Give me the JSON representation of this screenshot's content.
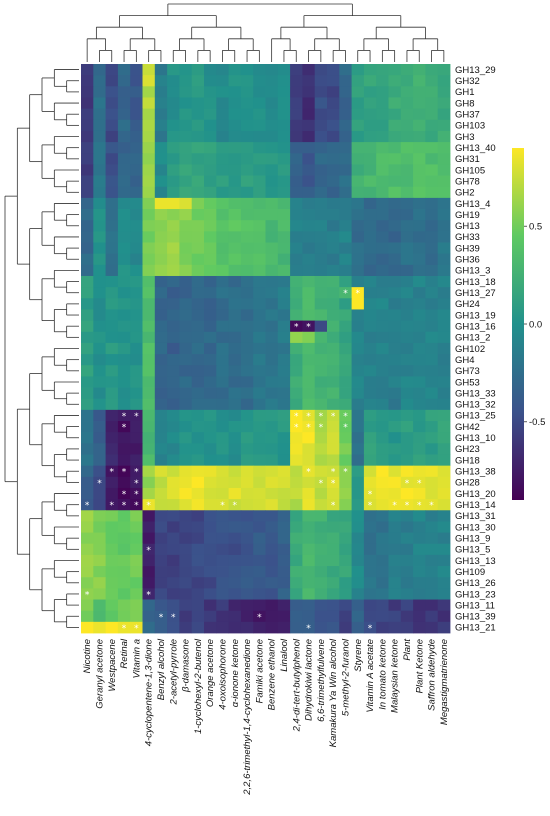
{
  "chart_data": {
    "type": "heatmap",
    "title": "",
    "xlabel": "",
    "ylabel": "",
    "rows": [
      "GH13_29",
      "GH32",
      "GH1",
      "GH8",
      "GH37",
      "GH103",
      "GH3",
      "GH13_40",
      "GH31",
      "GH105",
      "GH78",
      "GH2",
      "GH13_4",
      "GH19",
      "GH13",
      "GH33",
      "GH39",
      "GH36",
      "GH13_3",
      "GH13_18",
      "GH13_27",
      "GH24",
      "GH13_19",
      "GH13_16",
      "GH13_2",
      "GH102",
      "GH4",
      "GH73",
      "GH53",
      "GH13_33",
      "GH13_32",
      "GH13_25",
      "GH42",
      "GH13_10",
      "GH23",
      "GH18",
      "GH13_38",
      "GH28",
      "GH13_20",
      "GH13_14",
      "GH13_31",
      "GH13_30",
      "GH13_9",
      "GH13_5",
      "GH13_13",
      "GH109",
      "GH13_26",
      "GH13_23",
      "GH13_11",
      "GH13_39",
      "GH13_21"
    ],
    "columns": [
      "Nicotine",
      "Geranyl acetone",
      "Westpacene",
      "Retinal",
      "Vitamin a",
      "4-cyclopentene-1,3-dione",
      "Benzyl alcohol",
      "2-acetyl-pyrrole",
      "β-damasone",
      "1-cyclohexyl-2-butenol",
      "Orange acetone",
      "4-oxoisophorone",
      "α-ionone ketone",
      "2,2,6-trimethyl-1,4-cyclohexanedione",
      "Famiki acetone",
      "Benzene ethanol",
      "Linalool",
      "2,4-di-tert-butylphenol",
      "Dihydrokiwi lactone",
      "6,6-trimethylfulvene",
      "Kamakura Ya Win alcohol",
      "5-methyl-2-furanol",
      "Styrene",
      "Vitamin A acetate",
      "In tomato ketone",
      "Malaysian ketone",
      "Plant",
      "Plant Ketone",
      "Saffron aldehyde",
      "Megastigmatrienone"
    ],
    "row_group_values": [
      [
        -0.6,
        -0.25,
        -0.5,
        -0.3,
        -0.4,
        0.7,
        -0.15,
        0.0,
        0.05,
        0.05,
        0.0,
        -0.05,
        0.0,
        0.0,
        0.0,
        -0.05,
        -0.05,
        -0.55,
        -0.65,
        -0.45,
        -0.5,
        -0.3,
        0.1,
        0.15,
        0.15,
        0.2,
        0.2,
        0.25,
        0.2,
        0.2
      ],
      [
        -0.55,
        -0.2,
        -0.45,
        -0.3,
        -0.35,
        0.6,
        -0.05,
        0.1,
        0.15,
        0.15,
        0.1,
        0.1,
        0.1,
        0.1,
        0.1,
        0.05,
        0.05,
        -0.35,
        -0.4,
        -0.3,
        -0.3,
        -0.25,
        0.25,
        0.3,
        0.35,
        0.35,
        0.35,
        0.4,
        0.35,
        0.35
      ],
      [
        -0.3,
        0.0,
        -0.2,
        0.0,
        -0.05,
        0.5,
        0.55,
        0.6,
        0.55,
        0.5,
        0.45,
        0.4,
        0.4,
        0.4,
        0.35,
        0.3,
        0.3,
        -0.1,
        -0.15,
        -0.1,
        -0.15,
        -0.1,
        -0.25,
        -0.3,
        -0.3,
        -0.3,
        -0.25,
        -0.25,
        -0.25,
        -0.2
      ],
      [
        0.1,
        0.0,
        0.05,
        0.0,
        0.0,
        0.35,
        -0.3,
        -0.35,
        -0.3,
        -0.3,
        -0.3,
        -0.25,
        -0.25,
        -0.25,
        -0.2,
        -0.2,
        -0.15,
        0.2,
        0.3,
        0.25,
        0.25,
        0.15,
        -0.1,
        -0.1,
        -0.1,
        -0.15,
        -0.1,
        -0.1,
        -0.1,
        -0.1
      ],
      [
        -0.2,
        -0.35,
        -0.7,
        -0.8,
        -0.75,
        0.3,
        -0.1,
        -0.05,
        0.0,
        0.0,
        0.0,
        0.0,
        0.0,
        0.05,
        0.05,
        0.05,
        0.05,
        0.85,
        0.85,
        0.7,
        0.75,
        0.5,
        -0.2,
        0.1,
        0.05,
        0.05,
        0.1,
        0.1,
        0.1,
        0.15
      ],
      [
        -0.35,
        -0.5,
        -0.75,
        -0.85,
        -0.8,
        0.6,
        0.75,
        0.8,
        0.85,
        0.85,
        0.8,
        0.8,
        0.8,
        0.8,
        0.8,
        0.8,
        0.75,
        0.7,
        0.8,
        0.75,
        0.8,
        0.55,
        0.05,
        0.8,
        0.85,
        0.85,
        0.85,
        0.85,
        0.85,
        0.85
      ],
      [
        0.6,
        0.55,
        0.5,
        0.45,
        0.5,
        -0.75,
        -0.5,
        -0.55,
        -0.55,
        -0.5,
        -0.5,
        -0.45,
        -0.45,
        -0.4,
        -0.4,
        -0.4,
        -0.35,
        0.2,
        0.3,
        0.25,
        0.2,
        0.15,
        -0.05,
        -0.2,
        -0.2,
        -0.15,
        -0.15,
        -0.1,
        -0.1,
        -0.1
      ],
      [
        0.5,
        0.3,
        0.45,
        0.55,
        0.5,
        -0.3,
        -0.4,
        -0.5,
        -0.55,
        -0.55,
        -0.6,
        -0.6,
        -0.65,
        -0.7,
        -0.75,
        -0.75,
        -0.75,
        -0.35,
        -0.35,
        -0.4,
        -0.45,
        -0.55,
        -0.3,
        -0.5,
        -0.55,
        -0.55,
        -0.55,
        -0.6,
        -0.6,
        -0.6
      ]
    ],
    "row_group_assignment": [
      0,
      0,
      0,
      0,
      0,
      0,
      0,
      1,
      1,
      1,
      1,
      1,
      2,
      2,
      2,
      2,
      2,
      2,
      2,
      3,
      3,
      3,
      3,
      3,
      3,
      3,
      3,
      3,
      3,
      3,
      3,
      4,
      4,
      4,
      4,
      4,
      5,
      5,
      5,
      5,
      6,
      6,
      6,
      6,
      6,
      6,
      6,
      6,
      7,
      7,
      7
    ],
    "special_cells": [
      {
        "row": "GH13_27",
        "col": "Styrene",
        "value": 0.9
      },
      {
        "row": "GH13_27",
        "col": "5-methyl-2-furanol",
        "value": 0.3
      },
      {
        "row": "GH24",
        "col": "Styrene",
        "value": 0.9
      },
      {
        "row": "GH13_4",
        "col": "Benzyl alcohol",
        "value": 0.85
      },
      {
        "row": "GH13_4",
        "col": "2-acetyl-pyrrole",
        "value": 0.85
      },
      {
        "row": "GH13_4",
        "col": "β-damasone",
        "value": 0.8
      },
      {
        "row": "GH13_29",
        "col": "4-cyclopentene-1,3-dione",
        "value": 0.75
      },
      {
        "row": "GH32",
        "col": "4-cyclopentene-1,3-dione",
        "value": 0.8
      },
      {
        "row": "GH13_16",
        "col": "2,4-di-tert-butylphenol",
        "value": -0.85
      },
      {
        "row": "GH13_16",
        "col": "Dihydrokiwi lactone",
        "value": -0.8
      },
      {
        "row": "GH13_16",
        "col": "6,6-trimethylfulvene",
        "value": -0.5
      },
      {
        "row": "GH13_2",
        "col": "2,4-di-tert-butylphenol",
        "value": 0.6
      },
      {
        "row": "GH13_2",
        "col": "Dihydrokiwi lactone",
        "value": 0.55
      },
      {
        "row": "GH13_21",
        "col": "Nicotine",
        "value": 0.9
      },
      {
        "row": "GH13_21",
        "col": "Geranyl acetone",
        "value": 0.85
      },
      {
        "row": "GH13_21",
        "col": "Westpacene",
        "value": 0.9
      },
      {
        "row": "GH13_21",
        "col": "Retinal",
        "value": 0.85
      },
      {
        "row": "GH13_21",
        "col": "Vitamin a",
        "value": 0.85
      },
      {
        "row": "GH13_39",
        "col": "Nicotine",
        "value": 0.5
      },
      {
        "row": "GH13_14",
        "col": "4-cyclopentene-1,3-dione",
        "value": 0.85
      },
      {
        "row": "GH13_14",
        "col": "Nicotine",
        "value": -0.4
      }
    ],
    "stars": [
      [
        "GH13_27",
        "5-methyl-2-furanol"
      ],
      [
        "GH13_27",
        "Styrene"
      ],
      [
        "GH13_16",
        "2,4-di-tert-butylphenol"
      ],
      [
        "GH13_16",
        "Dihydrokiwi lactone"
      ],
      [
        "GH13_25",
        "Retinal"
      ],
      [
        "GH13_25",
        "Vitamin a"
      ],
      [
        "GH13_25",
        "2,4-di-tert-butylphenol"
      ],
      [
        "GH13_25",
        "Dihydrokiwi lactone"
      ],
      [
        "GH13_25",
        "6,6-trimethylfulvene"
      ],
      [
        "GH13_25",
        "Kamakura Ya Win alcohol"
      ],
      [
        "GH13_25",
        "5-methyl-2-furanol"
      ],
      [
        "GH42",
        "Retinal"
      ],
      [
        "GH42",
        "2,4-di-tert-butylphenol"
      ],
      [
        "GH42",
        "Dihydrokiwi lactone"
      ],
      [
        "GH42",
        "6,6-trimethylfulvene"
      ],
      [
        "GH42",
        "5-methyl-2-furanol"
      ],
      [
        "GH13_38",
        "Westpacene"
      ],
      [
        "GH13_38",
        "Retinal"
      ],
      [
        "GH13_38",
        "Vitamin a"
      ],
      [
        "GH13_38",
        "Dihydrokiwi lactone"
      ],
      [
        "GH13_38",
        "Kamakura Ya Win alcohol"
      ],
      [
        "GH13_38",
        "5-methyl-2-furanol"
      ],
      [
        "GH28",
        "Geranyl acetone"
      ],
      [
        "GH28",
        "Vitamin a"
      ],
      [
        "GH28",
        "6,6-trimethylfulvene"
      ],
      [
        "GH28",
        "Kamakura Ya Win alcohol"
      ],
      [
        "GH28",
        "Plant"
      ],
      [
        "GH28",
        "Plant Ketone"
      ],
      [
        "GH13_20",
        "Retinal"
      ],
      [
        "GH13_20",
        "Vitamin a"
      ],
      [
        "GH13_20",
        "Vitamin A acetate"
      ],
      [
        "GH13_14",
        "Nicotine"
      ],
      [
        "GH13_14",
        "Westpacene"
      ],
      [
        "GH13_14",
        "Retinal"
      ],
      [
        "GH13_14",
        "Vitamin a"
      ],
      [
        "GH13_14",
        "4-cyclopentene-1,3-dione"
      ],
      [
        "GH13_14",
        "4-oxoisophorone"
      ],
      [
        "GH13_14",
        "α-ionone ketone"
      ],
      [
        "GH13_14",
        "Kamakura Ya Win alcohol"
      ],
      [
        "GH13_14",
        "Vitamin A acetate"
      ],
      [
        "GH13_14",
        "Malaysian ketone"
      ],
      [
        "GH13_14",
        "Plant"
      ],
      [
        "GH13_14",
        "Plant Ketone"
      ],
      [
        "GH13_14",
        "Saffron aldehyde"
      ],
      [
        "GH13_5",
        "4-cyclopentene-1,3-dione"
      ],
      [
        "GH13_23",
        "Nicotine"
      ],
      [
        "GH13_23",
        "4-cyclopentene-1,3-dione"
      ],
      [
        "GH13_39",
        "Benzyl alcohol"
      ],
      [
        "GH13_39",
        "2-acetyl-pyrrole"
      ],
      [
        "GH13_39",
        "Famiki acetone"
      ],
      [
        "GH13_21",
        "Retinal"
      ],
      [
        "GH13_21",
        "Vitamin a"
      ],
      [
        "GH13_21",
        "Dihydrokiwi lactone"
      ],
      [
        "GH13_21",
        "Vitamin A acetate"
      ]
    ],
    "colorbar": {
      "vmin": -0.9,
      "vmax": 0.9,
      "ticks": [
        0.5,
        0.0,
        -0.5
      ],
      "tick_labels": [
        "0.5",
        "0.0",
        "-0.5"
      ]
    },
    "star_symbol": "*",
    "colors": [
      "#440154",
      "#3b528b",
      "#21918c",
      "#5ec962",
      "#fde725"
    ]
  }
}
